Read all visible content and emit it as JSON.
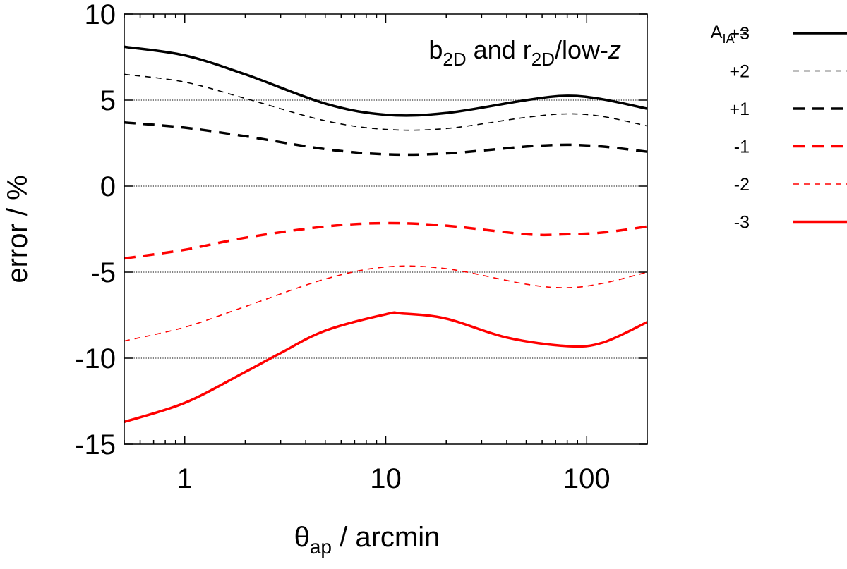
{
  "chart_data": {
    "type": "line",
    "title_parts": {
      "b": "b",
      "b_sub": "2D",
      "and": " and ",
      "r": "r",
      "r_sub": "2D",
      "tail": "/low-",
      "z": "z"
    },
    "xlabel_parts": {
      "theta": "θ",
      "sub": "ap",
      "rest": " / arcmin"
    },
    "ylabel": "error / %",
    "xscale": "log",
    "xlim": [
      0.5,
      200
    ],
    "ylim": [
      -15,
      10
    ],
    "xticks": [
      {
        "value": 1,
        "label": "1"
      },
      {
        "value": 10,
        "label": "10"
      },
      {
        "value": 100,
        "label": "100"
      }
    ],
    "yticks": [
      {
        "value": 10,
        "label": "10"
      },
      {
        "value": 5,
        "label": "5"
      },
      {
        "value": 0,
        "label": "0"
      },
      {
        "value": -5,
        "label": "-5"
      },
      {
        "value": -10,
        "label": "-10"
      },
      {
        "value": -15,
        "label": "-15"
      }
    ],
    "gridlines_y": [
      5,
      0,
      -5,
      -10
    ],
    "legend_title_parts": {
      "a": "A",
      "sub": "IA",
      "eq": " = "
    },
    "legend_placement": "right, outside plot",
    "series": [
      {
        "name": "+3",
        "color": "#000000",
        "style": "solid",
        "width": "thick",
        "x": [
          0.5,
          1,
          2,
          5,
          10,
          20,
          50,
          80,
          120,
          200
        ],
        "y": [
          8.1,
          7.6,
          6.5,
          4.8,
          4.15,
          4.25,
          5.0,
          5.25,
          5.05,
          4.5
        ]
      },
      {
        "name": "+2",
        "color": "#000000",
        "style": "dash",
        "width": "thin",
        "x": [
          0.5,
          1,
          2,
          5,
          10,
          20,
          50,
          80,
          120,
          200
        ],
        "y": [
          6.5,
          6.05,
          5.1,
          3.8,
          3.3,
          3.35,
          4.0,
          4.2,
          4.05,
          3.5
        ]
      },
      {
        "name": "+1",
        "color": "#000000",
        "style": "dash",
        "width": "thick",
        "x": [
          0.5,
          1,
          2,
          5,
          10,
          20,
          50,
          80,
          120,
          200
        ],
        "y": [
          3.7,
          3.4,
          2.9,
          2.15,
          1.85,
          1.9,
          2.3,
          2.4,
          2.3,
          2.0
        ]
      },
      {
        "name": "-1",
        "color": "#ff0000",
        "style": "dash",
        "width": "thick",
        "x": [
          0.5,
          1,
          2,
          5,
          10,
          20,
          50,
          80,
          120,
          200
        ],
        "y": [
          -4.2,
          -3.7,
          -3.0,
          -2.35,
          -2.15,
          -2.3,
          -2.8,
          -2.8,
          -2.7,
          -2.35
        ]
      },
      {
        "name": "-2",
        "color": "#ff0000",
        "style": "dash",
        "width": "thin",
        "x": [
          0.5,
          1,
          2,
          5,
          10,
          20,
          50,
          80,
          120,
          200
        ],
        "y": [
          -9.0,
          -8.2,
          -7.0,
          -5.4,
          -4.7,
          -4.8,
          -5.7,
          -5.9,
          -5.65,
          -5.0
        ]
      },
      {
        "name": "-3",
        "color": "#ff0000",
        "style": "solid",
        "width": "thick",
        "x": [
          0.5,
          1,
          2,
          3,
          5,
          10,
          12,
          20,
          40,
          80,
          120,
          200
        ],
        "y": [
          -13.7,
          -12.6,
          -10.8,
          -9.7,
          -8.4,
          -7.45,
          -7.4,
          -7.7,
          -8.8,
          -9.3,
          -9.1,
          -7.9
        ]
      }
    ]
  }
}
